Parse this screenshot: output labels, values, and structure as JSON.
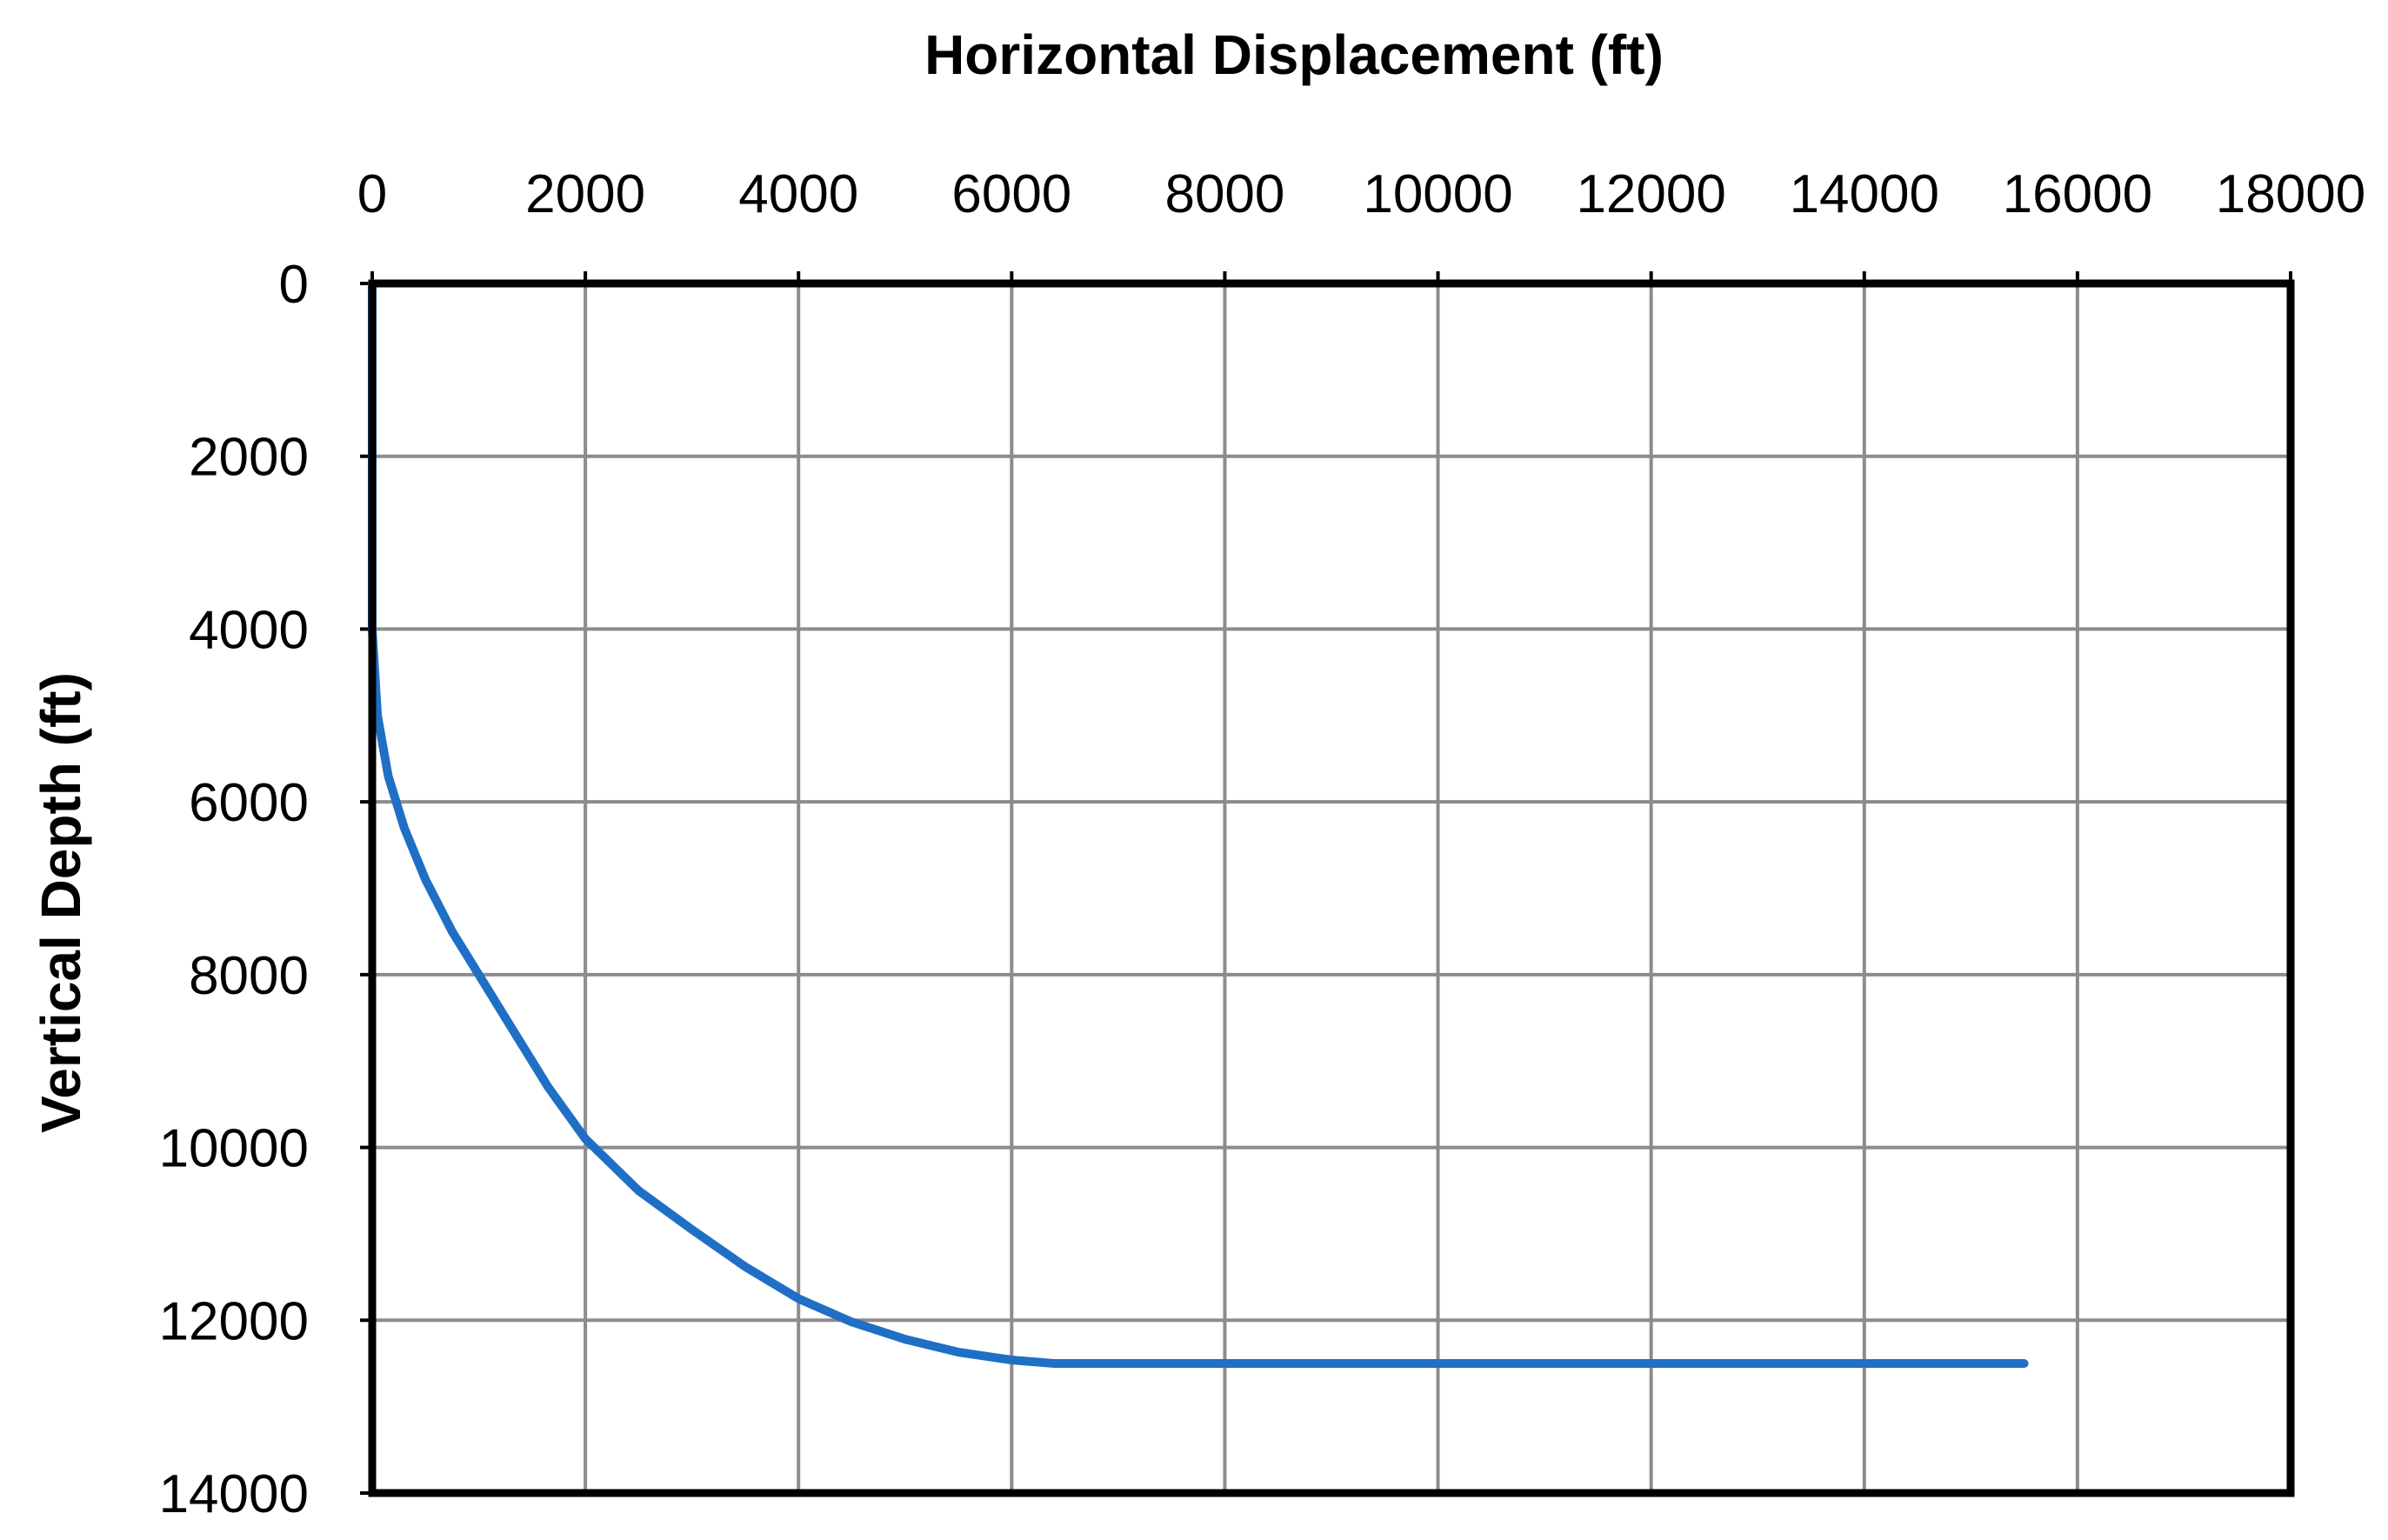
{
  "chart_data": {
    "type": "line",
    "xlabel": "Horizontal Displacement (ft)",
    "ylabel": "Vertical Depth (ft)",
    "x_axis_position": "top",
    "y_axis_reversed": true,
    "xlim": [
      0,
      18000
    ],
    "ylim": [
      0,
      14000
    ],
    "x_ticks": [
      0,
      2000,
      4000,
      6000,
      8000,
      10000,
      12000,
      14000,
      16000,
      18000
    ],
    "y_ticks": [
      0,
      2000,
      4000,
      6000,
      8000,
      10000,
      12000,
      14000
    ],
    "grid": true,
    "legend": "none",
    "series": [
      {
        "color": "#1f6fc5",
        "x": [
          0,
          0,
          50,
          150,
          300,
          500,
          750,
          1000,
          1300,
          1650,
          2000,
          2500,
          3000,
          3500,
          4000,
          4500,
          5000,
          5500,
          6000,
          6400,
          7000,
          8000,
          10000,
          12000,
          14000,
          15500
        ],
        "y": [
          0,
          4000,
          5000,
          5700,
          6300,
          6900,
          7500,
          8000,
          8600,
          9300,
          9900,
          10500,
          10950,
          11380,
          11750,
          12020,
          12220,
          12370,
          12460,
          12500,
          12500,
          12500,
          12500,
          12500,
          12500,
          12500
        ]
      }
    ]
  }
}
